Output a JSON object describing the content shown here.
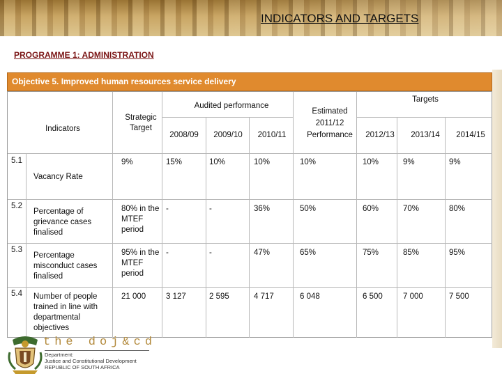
{
  "header": {
    "title": "INDICATORS AND TARGETS"
  },
  "programme": {
    "label": "PROGRAMME 1: ADMINISTRATION"
  },
  "objective": {
    "label": "Objective 5. Improved human resources service delivery"
  },
  "table": {
    "headers": {
      "indicators": "Indicators",
      "strategic_target": [
        "Strategic",
        "Target"
      ],
      "audited_performance": "Audited performance",
      "years_audited": [
        "2008/09",
        "2009/10",
        "2010/11"
      ],
      "estimated": [
        "Estimated",
        "2011/12",
        "Performance"
      ],
      "targets": "Targets",
      "years_targets": [
        "2012/13",
        "2013/14",
        "2014/15"
      ]
    },
    "rows": [
      {
        "num": "5.1",
        "indicator": [
          "Vacancy Rate"
        ],
        "strategic": [
          "9%"
        ],
        "y0809": "15%",
        "y0910": "10%",
        "y1011": "10%",
        "est": "10%",
        "t1213": "10%",
        "t1314": "9%",
        "t1415": "9%"
      },
      {
        "num": "5.2",
        "indicator": [
          "Percentage of",
          "grievance cases",
          "finalised"
        ],
        "strategic": [
          "80% in the",
          "MTEF",
          "period"
        ],
        "y0809": "-",
        "y0910": "-",
        "y1011": "36%",
        "est": "50%",
        "t1213": "60%",
        "t1314": "70%",
        "t1415": "80%"
      },
      {
        "num": "5.3",
        "indicator": [
          "Percentage",
          "misconduct cases",
          "finalised"
        ],
        "strategic": [
          "95% in the",
          "MTEF",
          "period"
        ],
        "y0809": "-",
        "y0910": "-",
        "y1011": "47%",
        "est": "65%",
        "t1213": "75%",
        "t1314": "85%",
        "t1415": "95%"
      },
      {
        "num": "5.4",
        "indicator": [
          "Number of people",
          "trained in line with",
          "departmental",
          "objectives"
        ],
        "strategic": [
          "21 000"
        ],
        "y0809": "3 127",
        "y0910": "2 595",
        "y1011": "4 717",
        "est": "6 048",
        "t1213": "6 500",
        "t1314": "7 000",
        "t1415": "7 500"
      }
    ]
  },
  "footer": {
    "brand": "the doj&cd",
    "dept_lines": [
      "Department:",
      "Justice and Constitutional Development",
      "REPUBLIC OF SOUTH AFRICA"
    ]
  },
  "icons": {
    "logo": "coat-of-arms-icon"
  }
}
